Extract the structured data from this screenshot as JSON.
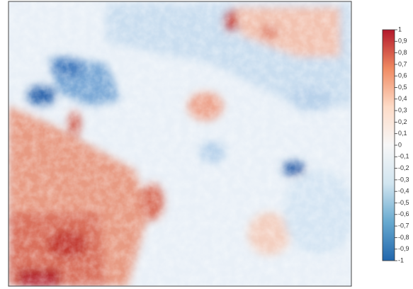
{
  "chart_data": {
    "type": "heatmap",
    "colormap": [
      "#b2182b",
      "#ef8a62",
      "#fddbc7",
      "#f7f7f7",
      "#d1e5f0",
      "#67a9cf",
      "#2166ac"
    ],
    "colorbar_lim": [
      -1,
      1
    ],
    "colorbar_ticks": [
      1,
      {
        "value": 0.9,
        "label": "0,9"
      },
      {
        "value": 0.8,
        "label": "0,8"
      },
      {
        "value": 0.7,
        "label": "0,7"
      },
      {
        "value": 0.6,
        "label": "0,6"
      },
      {
        "value": 0.5,
        "label": "0,5"
      },
      {
        "value": 0.4,
        "label": "0,4"
      },
      {
        "value": 0.3,
        "label": "0,3"
      },
      {
        "value": 0.2,
        "label": "0,2"
      },
      {
        "value": 0.1,
        "label": "0,1"
      },
      0,
      {
        "value": -0.1,
        "label": "-0,1"
      },
      {
        "value": -0.2,
        "label": "-0,2"
      },
      {
        "value": -0.3,
        "label": "-0,3"
      },
      {
        "value": -0.4,
        "label": "-0,4"
      },
      {
        "value": -0.5,
        "label": "-0,5"
      },
      {
        "value": -0.6,
        "label": "-0,6"
      },
      {
        "value": -0.7,
        "label": "-0,7"
      },
      {
        "value": -0.8,
        "label": "-0,8"
      },
      {
        "value": -0.9,
        "label": "-0,9"
      },
      -1
    ]
  }
}
